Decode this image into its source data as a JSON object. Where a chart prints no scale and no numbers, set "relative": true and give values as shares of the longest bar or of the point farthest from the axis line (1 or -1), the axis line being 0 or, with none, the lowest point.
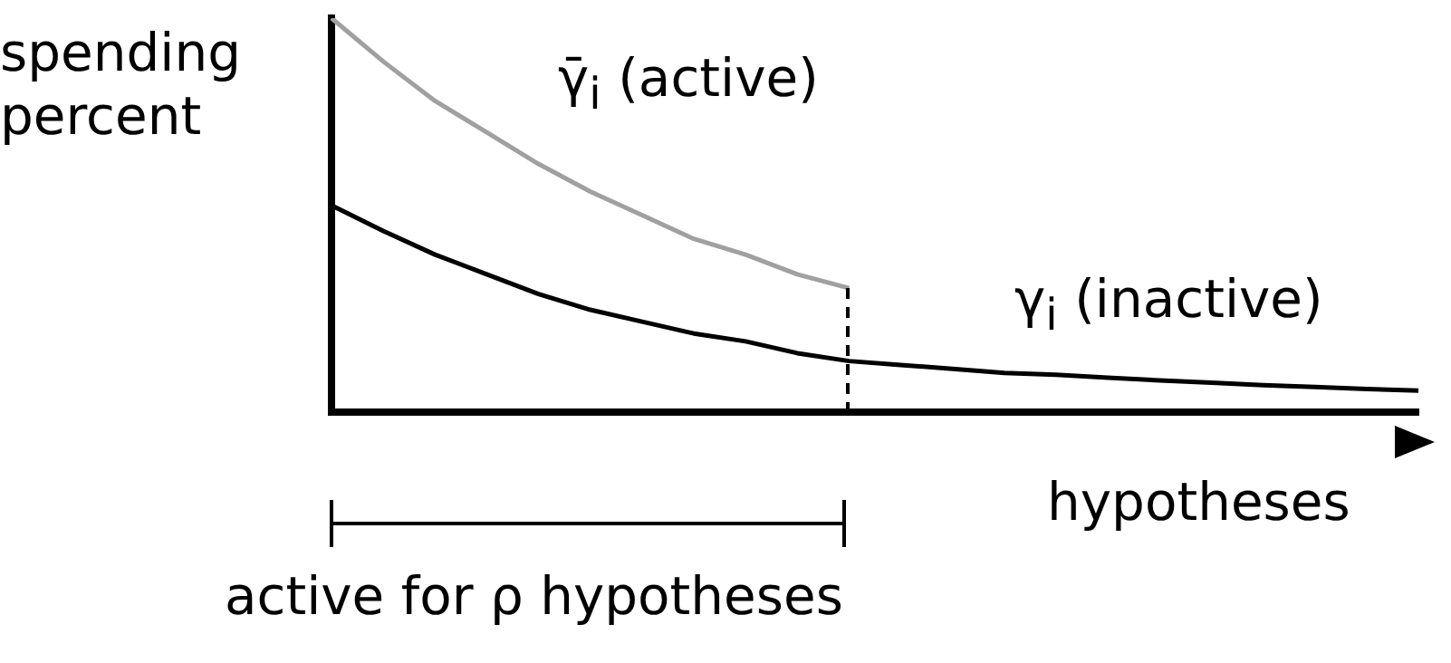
{
  "chart_data": {
    "type": "line",
    "relative": true,
    "ylabel": "spending percent",
    "xlabel": "hypotheses",
    "grid": false,
    "legend": false,
    "marker": "none",
    "annotations": [
      "active for ρ hypotheses"
    ],
    "categories": [
      null,
      null,
      null,
      null,
      null,
      null,
      null,
      null,
      null,
      null,
      null,
      null,
      null,
      null,
      null,
      null,
      null,
      null,
      null,
      null,
      null,
      null
    ],
    "series": [
      {
        "name": "γ̄$_{i}$ (active)",
        "color": "#a0a0a0",
        "values": [
          1,
          0.89,
          0.79,
          0.71,
          0.63,
          0.56,
          0.5,
          0.44,
          0.4,
          0.35,
          0.315,
          null,
          null,
          null,
          null,
          null,
          null,
          null,
          null,
          null,
          null,
          null
        ]
      },
      {
        "name": "γ$_{i}$ (inactive)",
        "color": "#000000",
        "values": [
          0.525,
          0.46,
          0.4,
          0.35,
          0.3,
          0.26,
          0.23,
          0.2,
          0.18,
          0.15,
          0.13,
          0.12,
          0.11,
          0.1,
          0.095,
          0.088,
          0.081,
          0.075,
          0.069,
          0.064,
          0.059,
          0.055
        ]
      }
    ]
  }
}
